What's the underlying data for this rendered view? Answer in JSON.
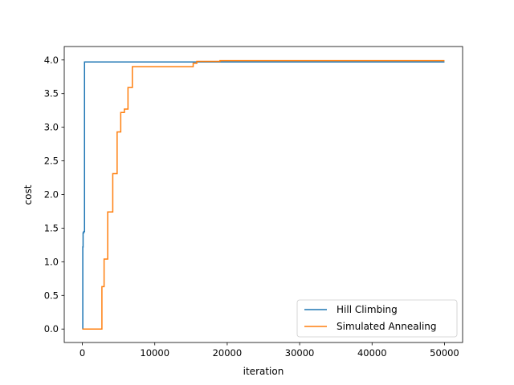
{
  "chart_data": {
    "type": "line",
    "title": "",
    "xlabel": "iteration",
    "ylabel": "cost",
    "xlim": [
      -2500,
      52500
    ],
    "ylim": [
      -0.2,
      4.2
    ],
    "xticks": [
      0,
      10000,
      20000,
      30000,
      40000,
      50000
    ],
    "xtick_labels": [
      "0",
      "10000",
      "20000",
      "30000",
      "40000",
      "50000"
    ],
    "yticks": [
      0.0,
      0.5,
      1.0,
      1.5,
      2.0,
      2.5,
      3.0,
      3.5,
      4.0
    ],
    "ytick_labels": [
      "0.0",
      "0.5",
      "1.0",
      "1.5",
      "2.0",
      "2.5",
      "3.0",
      "3.5",
      "4.0"
    ],
    "grid": false,
    "legend_position": "lower-right",
    "series": [
      {
        "name": "Hill Climbing",
        "color": "#1f77b4",
        "step": true,
        "x": [
          0,
          60,
          100,
          200,
          300,
          15300,
          16000,
          50000
        ],
        "y": [
          0.0,
          1.22,
          1.43,
          1.45,
          3.97,
          3.97,
          3.97,
          3.97
        ]
      },
      {
        "name": "Simulated Annealing",
        "color": "#ff7f0e",
        "step": true,
        "x": [
          0,
          2700,
          2800,
          3000,
          3500,
          4200,
          4800,
          5300,
          5800,
          6300,
          6900,
          15300,
          15800,
          19000,
          50000
        ],
        "y": [
          0.0,
          0.63,
          0.63,
          1.04,
          1.74,
          2.31,
          2.93,
          3.22,
          3.27,
          3.59,
          3.9,
          3.95,
          3.98,
          3.99,
          3.99
        ]
      }
    ]
  }
}
